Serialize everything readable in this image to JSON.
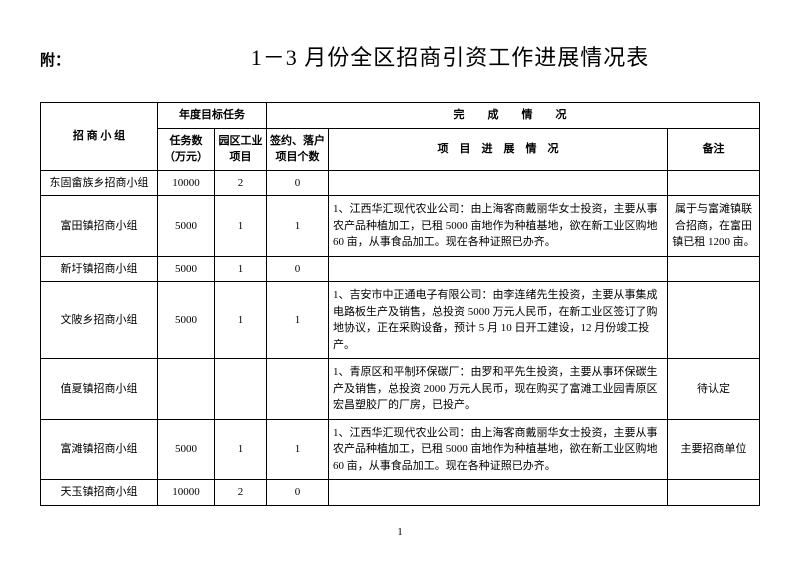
{
  "prefix": "附：",
  "title": "1－3 月份全区招商引资工作进展情况表",
  "headers": {
    "group": "招 商 小 组",
    "annualTarget": "年度目标任务",
    "completion": "完　成　情　况",
    "tasks": "任务数（万元）",
    "parks": "园区工业项目",
    "signed": "签约、落户项目个数",
    "progress": "项　目　进　展　情　况",
    "remark": "备注"
  },
  "rows": [
    {
      "group": "东固畲族乡招商小组",
      "tasks": "10000",
      "parks": "2",
      "signed": "0",
      "progress": "",
      "remark": ""
    },
    {
      "group": "富田镇招商小组",
      "tasks": "5000",
      "parks": "1",
      "signed": "1",
      "progress": "1、江西华汇现代农业公司：由上海客商戴丽华女士投资，主要从事农产品种植加工，已租 5000 亩地作为种植基地，欲在新工业区购地 60 亩，从事食品加工。现在各种证照已办齐。",
      "remark": "属于与富滩镇联合招商，在富田镇已租 1200 亩。"
    },
    {
      "group": "新圩镇招商小组",
      "tasks": "5000",
      "parks": "1",
      "signed": "0",
      "progress": "",
      "remark": ""
    },
    {
      "group": "文陂乡招商小组",
      "tasks": "5000",
      "parks": "1",
      "signed": "1",
      "progress": "1、吉安市中正通电子有限公司：由李连绪先生投资，主要从事集成电路板生产及销售，总投资 5000 万元人民币，在新工业区签订了购地协议，正在采购设备，预计 5 月 10 日开工建设，12 月份竣工投产。",
      "remark": ""
    },
    {
      "group": "值夏镇招商小组",
      "tasks": "",
      "parks": "",
      "signed": "",
      "progress": "1、青原区和平制环保碳厂：由罗和平先生投资，主要从事环保碳生产及销售，总投资 2000 万元人民币，现在购买了富滩工业园青原区宏昌塑胶厂的厂房，已投产。",
      "remark": "待认定"
    },
    {
      "group": "富滩镇招商小组",
      "tasks": "5000",
      "parks": "1",
      "signed": "1",
      "progress": "1、江西华汇现代农业公司：由上海客商戴丽华女士投资，主要从事农产品种植加工，已租 5000 亩地作为种植基地，欲在新工业区购地 60 亩，从事食品加工。现在各种证照已办齐。",
      "remark": "主要招商单位"
    },
    {
      "group": "天玉镇招商小组",
      "tasks": "10000",
      "parks": "2",
      "signed": "0",
      "progress": "",
      "remark": ""
    }
  ],
  "pageNum": "1"
}
